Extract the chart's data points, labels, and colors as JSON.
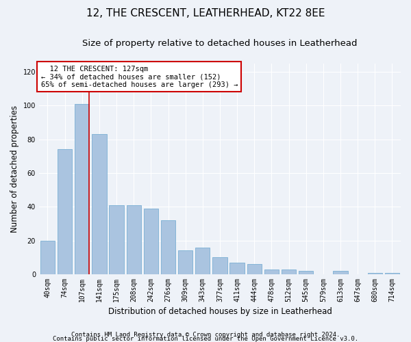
{
  "title": "12, THE CRESCENT, LEATHERHEAD, KT22 8EE",
  "subtitle": "Size of property relative to detached houses in Leatherhead",
  "xlabel": "Distribution of detached houses by size in Leatherhead",
  "ylabel": "Number of detached properties",
  "categories": [
    "40sqm",
    "74sqm",
    "107sqm",
    "141sqm",
    "175sqm",
    "208sqm",
    "242sqm",
    "276sqm",
    "309sqm",
    "343sqm",
    "377sqm",
    "411sqm",
    "444sqm",
    "478sqm",
    "512sqm",
    "545sqm",
    "579sqm",
    "613sqm",
    "647sqm",
    "680sqm",
    "714sqm"
  ],
  "values": [
    20,
    74,
    101,
    83,
    41,
    41,
    39,
    32,
    14,
    16,
    10,
    7,
    6,
    3,
    3,
    2,
    0,
    2,
    0,
    1,
    1
  ],
  "bar_color": "#aac4e0",
  "bar_edgecolor": "#7aafd4",
  "marker_index": 2,
  "marker_line_color": "#cc0000",
  "annotation_line1": "  12 THE CRESCENT: 127sqm",
  "annotation_line2": "← 34% of detached houses are smaller (152)",
  "annotation_line3": "65% of semi-detached houses are larger (293) →",
  "ylim": [
    0,
    125
  ],
  "yticks": [
    0,
    20,
    40,
    60,
    80,
    100,
    120
  ],
  "footer1": "Contains HM Land Registry data © Crown copyright and database right 2024.",
  "footer2": "Contains public sector information licensed under the Open Government Licence v3.0.",
  "bg_color": "#eef2f8",
  "title_fontsize": 11,
  "subtitle_fontsize": 9.5,
  "axis_label_fontsize": 8.5,
  "tick_fontsize": 7,
  "footer_fontsize": 6.5,
  "annotation_fontsize": 7.5
}
